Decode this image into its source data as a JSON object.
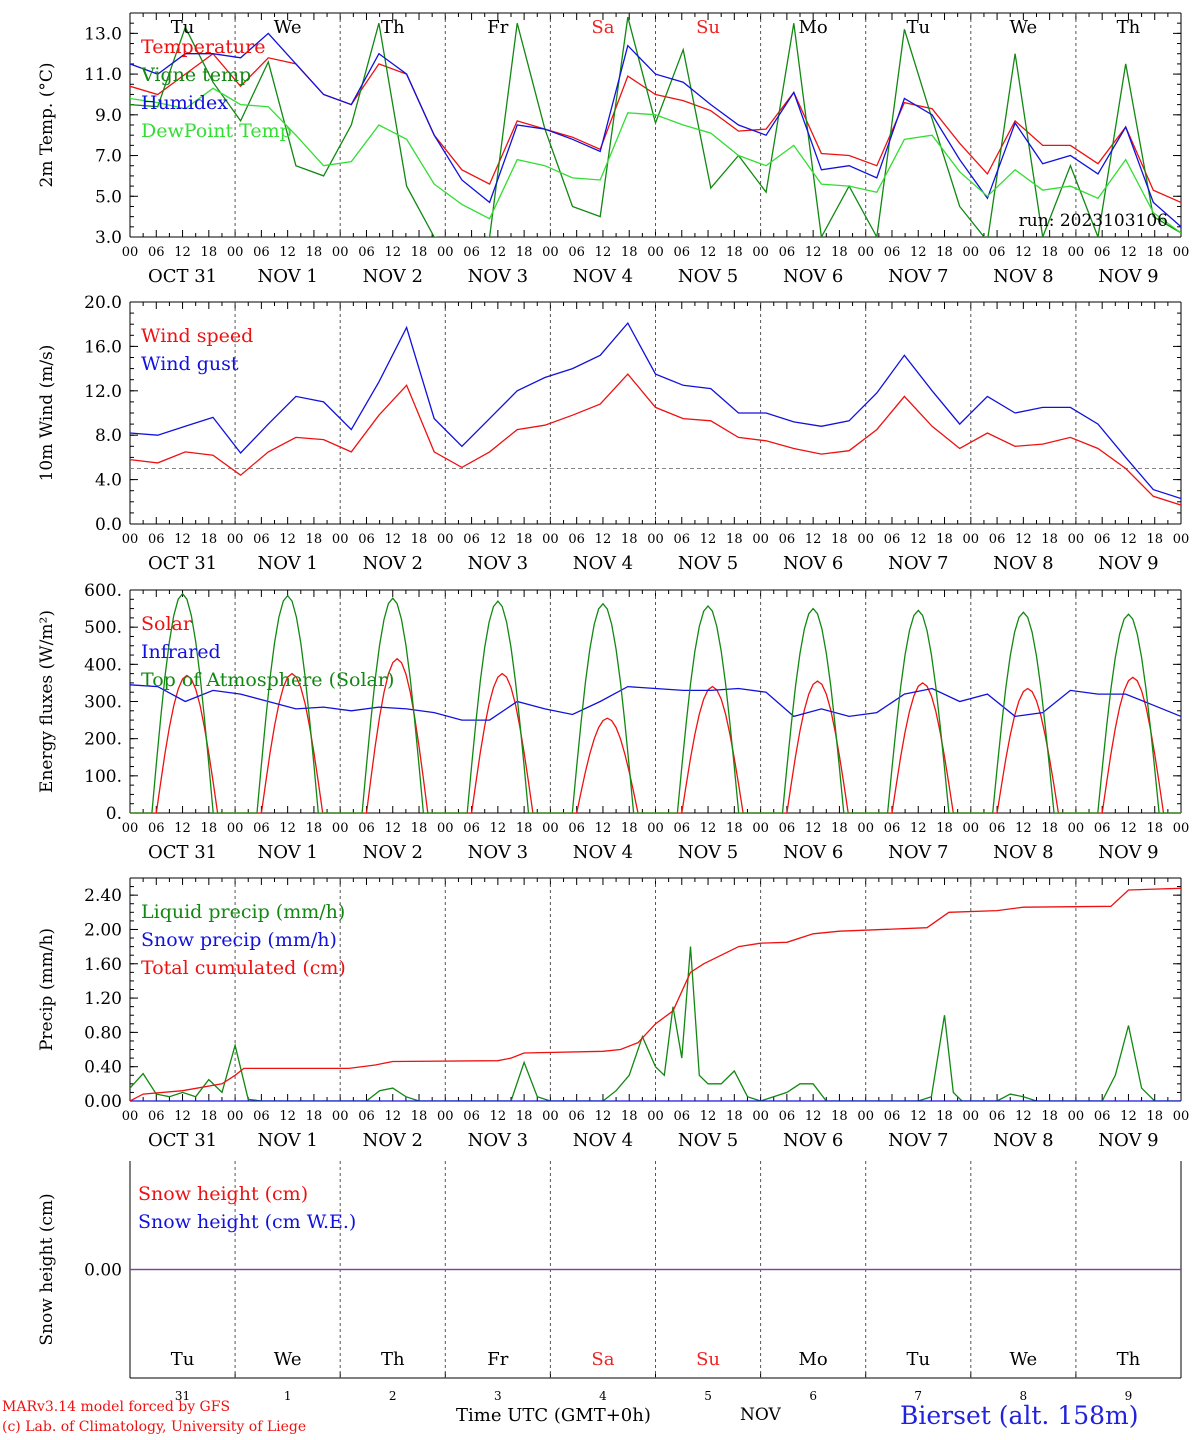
{
  "run_label": "run: 2023103106",
  "colors": {
    "red": "#ee1111",
    "green": "#118811",
    "blue": "#1111dd",
    "light_green": "#33dd33",
    "purple": "#7744aa",
    "day_red": "#ee2222",
    "axis": "#000000",
    "grid": "#555555"
  },
  "days": [
    {
      "dow": "Tu",
      "date_label": "OCT 31",
      "num": "31",
      "weekend": false
    },
    {
      "dow": "We",
      "date_label": "NOV 1",
      "num": "1",
      "weekend": false
    },
    {
      "dow": "Th",
      "date_label": "NOV 2",
      "num": "2",
      "weekend": false
    },
    {
      "dow": "Fr",
      "date_label": "NOV 3",
      "num": "3",
      "weekend": false
    },
    {
      "dow": "Sa",
      "date_label": "NOV 4",
      "num": "4",
      "weekend": true
    },
    {
      "dow": "Su",
      "date_label": "NOV 5",
      "num": "5",
      "weekend": true
    },
    {
      "dow": "Mo",
      "date_label": "NOV 6",
      "num": "6",
      "weekend": false
    },
    {
      "dow": "Tu",
      "date_label": "NOV 7",
      "num": "7",
      "weekend": false
    },
    {
      "dow": "We",
      "date_label": "NOV 8",
      "num": "8",
      "weekend": false
    },
    {
      "dow": "Th",
      "date_label": "NOV 9",
      "num": "9",
      "weekend": false
    }
  ],
  "hour_ticks": [
    "00",
    "06",
    "12",
    "18"
  ],
  "footer": {
    "model": "MARv3.14 model forced by GFS",
    "copyright": "(c) Lab. of Climatology, University of Liege",
    "time_label": "Time UTC (GMT+0h)",
    "month": "NOV",
    "station": "Bierset (alt. 158m)"
  },
  "chart_data": [
    {
      "id": "temperature",
      "type": "line",
      "ylabel": "2m Temp. (°C)",
      "ylim": [
        3,
        14
      ],
      "yticks": [
        "3.0",
        "5.0",
        "7.0",
        "9.0",
        "11.0",
        "13.0"
      ],
      "grid": "vertical-dashed-day-separators",
      "legend_position": "top-left",
      "x_unit": "hours since 2023-10-31 00 UTC, 6-hourly, 0..240",
      "series": [
        {
          "name": "Temperature",
          "color": "#ee1111",
          "values": [
            10.4,
            10.0,
            11.0,
            12.0,
            10.4,
            11.8,
            11.5,
            10.0,
            9.5,
            11.5,
            11.0,
            8.0,
            6.3,
            5.6,
            8.7,
            8.3,
            7.9,
            7.3,
            10.9,
            10.0,
            9.7,
            9.2,
            8.2,
            8.3,
            10.1,
            7.1,
            7.0,
            6.5,
            9.6,
            9.3,
            7.6,
            6.1,
            8.7,
            7.5,
            7.5,
            6.6,
            8.4,
            5.3,
            4.7
          ]
        },
        {
          "name": "Vigne temp",
          "color": "#118811",
          "values": [
            9.5,
            9.4,
            13.3,
            10.6,
            8.7,
            11.6,
            6.5,
            6.0,
            8.5,
            13.5,
            5.5,
            3.0,
            2.8,
            3.0,
            13.5,
            8.3,
            4.5,
            4.0,
            13.8,
            8.6,
            12.2,
            5.4,
            7.0,
            5.2,
            13.5,
            3.0,
            5.5,
            3.0,
            13.2,
            8.8,
            4.5,
            2.8,
            12.0,
            3.0,
            6.5,
            3.0,
            11.5,
            4.0,
            3.2
          ]
        },
        {
          "name": "Humidex",
          "color": "#1111dd",
          "values": [
            11.5,
            11.0,
            12.0,
            12.0,
            11.8,
            13.0,
            11.5,
            10.0,
            9.5,
            12.0,
            11.0,
            8.0,
            5.8,
            4.7,
            8.5,
            8.3,
            7.8,
            7.2,
            12.4,
            11.0,
            10.6,
            9.5,
            8.5,
            8.0,
            10.1,
            6.3,
            6.5,
            5.9,
            9.8,
            9.0,
            6.8,
            4.9,
            8.6,
            6.6,
            7.0,
            6.1,
            8.4,
            4.7,
            3.5
          ]
        },
        {
          "name": "DewPoint Temp",
          "color": "#33dd33",
          "values": [
            9.8,
            9.6,
            9.3,
            10.3,
            9.5,
            9.4,
            8.0,
            6.5,
            6.7,
            8.5,
            7.8,
            5.6,
            4.6,
            3.9,
            6.8,
            6.5,
            5.9,
            5.8,
            9.1,
            9.0,
            8.5,
            8.1,
            7.0,
            6.5,
            7.5,
            5.6,
            5.5,
            5.2,
            7.8,
            8.0,
            6.2,
            5.0,
            6.3,
            5.3,
            5.5,
            4.9,
            6.8,
            4.2,
            3.2
          ]
        }
      ]
    },
    {
      "id": "wind",
      "type": "line",
      "ylabel": "10m Wind (m/s)",
      "ylim": [
        0,
        20
      ],
      "yticks": [
        "0.0",
        "4.0",
        "8.0",
        "12.0",
        "16.0",
        "20.0"
      ],
      "reference_line": 5.0,
      "legend_position": "top-left",
      "series": [
        {
          "name": "Wind speed",
          "color": "#ee1111",
          "values": [
            5.8,
            5.5,
            6.5,
            6.2,
            4.4,
            6.5,
            7.8,
            7.6,
            6.5,
            9.8,
            12.5,
            6.5,
            5.1,
            6.5,
            8.5,
            8.9,
            9.8,
            10.8,
            13.5,
            10.5,
            9.5,
            9.3,
            7.8,
            7.5,
            6.8,
            6.3,
            6.6,
            8.5,
            11.5,
            8.8,
            6.8,
            8.2,
            7.0,
            7.2,
            7.8,
            6.8,
            5.0,
            2.5,
            1.7
          ]
        },
        {
          "name": "Wind gust",
          "color": "#1111dd",
          "values": [
            8.2,
            8.0,
            8.8,
            9.6,
            6.4,
            9.0,
            11.5,
            11.0,
            8.5,
            12.8,
            17.7,
            9.5,
            7.0,
            9.5,
            12.0,
            13.2,
            14.0,
            15.2,
            18.1,
            13.5,
            12.5,
            12.2,
            10.0,
            10.0,
            9.2,
            8.8,
            9.3,
            11.8,
            15.2,
            12.0,
            9.0,
            11.5,
            10.0,
            10.5,
            10.5,
            9.0,
            6.0,
            3.1,
            2.3
          ]
        }
      ]
    },
    {
      "id": "energy",
      "type": "line",
      "ylabel": "Energy fluxes (W/m²)",
      "ylim": [
        0,
        600
      ],
      "yticks": [
        "0.",
        "100.",
        "200.",
        "300.",
        "400.",
        "500.",
        "600."
      ],
      "legend_position": "top-left",
      "series": [
        {
          "name": "Solar",
          "color": "#ee1111",
          "peaks": [
            [
              13,
              370
            ],
            [
              37,
              375
            ],
            [
              61,
              415
            ],
            [
              85,
              375
            ],
            [
              109,
              255
            ],
            [
              133,
              340
            ],
            [
              157,
              355
            ],
            [
              181,
              350
            ],
            [
              205,
              335
            ],
            [
              229,
              365
            ]
          ]
        },
        {
          "name": "Infrared",
          "color": "#1111dd",
          "values": [
            345,
            340,
            300,
            330,
            320,
            300,
            280,
            285,
            275,
            285,
            280,
            270,
            250,
            250,
            300,
            280,
            265,
            300,
            340,
            335,
            330,
            330,
            335,
            325,
            260,
            280,
            260,
            270,
            320,
            335,
            300,
            320,
            260,
            270,
            330,
            320,
            320,
            290,
            260
          ]
        },
        {
          "name": "Top of Atmosphere (Solar)",
          "color": "#118811",
          "peaks": [
            [
              12,
              590
            ],
            [
              36,
              585
            ],
            [
              60,
              578
            ],
            [
              84,
              570
            ],
            [
              108,
              563
            ],
            [
              132,
              557
            ],
            [
              156,
              550
            ],
            [
              180,
              545
            ],
            [
              204,
              540
            ],
            [
              228,
              535
            ]
          ]
        }
      ]
    },
    {
      "id": "precip",
      "type": "line",
      "ylabel": "Precip (mm/h)",
      "ylim": [
        0,
        2.6
      ],
      "yticks": [
        "0.00",
        "0.40",
        "0.80",
        "1.20",
        "1.60",
        "2.00",
        "2.40"
      ],
      "legend_position": "top-left",
      "series": [
        {
          "name": "Liquid precip (mm/h)",
          "color": "#118811",
          "points": [
            [
              0,
              0.15
            ],
            [
              3,
              0.32
            ],
            [
              6,
              0.08
            ],
            [
              9,
              0.05
            ],
            [
              12,
              0.1
            ],
            [
              15,
              0.05
            ],
            [
              18,
              0.25
            ],
            [
              21,
              0.1
            ],
            [
              24,
              0.65
            ],
            [
              27,
              0.02
            ],
            [
              30,
              0.0
            ],
            [
              54,
              0.0
            ],
            [
              57,
              0.12
            ],
            [
              60,
              0.15
            ],
            [
              63,
              0.05
            ],
            [
              66,
              0.0
            ],
            [
              87,
              0.0
            ],
            [
              90,
              0.45
            ],
            [
              93,
              0.05
            ],
            [
              96,
              0.0
            ],
            [
              108,
              0.0
            ],
            [
              111,
              0.12
            ],
            [
              114,
              0.3
            ],
            [
              117,
              0.75
            ],
            [
              120,
              0.4
            ],
            [
              122,
              0.3
            ],
            [
              124,
              1.1
            ],
            [
              126,
              0.5
            ],
            [
              128,
              1.8
            ],
            [
              130,
              0.3
            ],
            [
              132,
              0.2
            ],
            [
              135,
              0.2
            ],
            [
              138,
              0.35
            ],
            [
              141,
              0.05
            ],
            [
              144,
              0.0
            ],
            [
              150,
              0.1
            ],
            [
              153,
              0.2
            ],
            [
              156,
              0.2
            ],
            [
              159,
              0.0
            ],
            [
              180,
              0.0
            ],
            [
              183,
              0.05
            ],
            [
              186,
              1.0
            ],
            [
              188,
              0.1
            ],
            [
              190,
              0.0
            ],
            [
              198,
              0.0
            ],
            [
              201,
              0.08
            ],
            [
              204,
              0.05
            ],
            [
              207,
              0.0
            ],
            [
              222,
              0.0
            ],
            [
              225,
              0.3
            ],
            [
              228,
              0.88
            ],
            [
              231,
              0.15
            ],
            [
              234,
              0.0
            ],
            [
              240,
              0.0
            ]
          ]
        },
        {
          "name": "Snow precip (mm/h)",
          "color": "#1111dd",
          "values": [
            0
          ]
        },
        {
          "name": "Total cumulated (cm)",
          "color": "#ee1111",
          "points": [
            [
              0,
              0.0
            ],
            [
              3,
              0.08
            ],
            [
              12,
              0.12
            ],
            [
              21,
              0.2
            ],
            [
              24,
              0.3
            ],
            [
              26,
              0.38
            ],
            [
              50,
              0.38
            ],
            [
              56,
              0.42
            ],
            [
              60,
              0.46
            ],
            [
              84,
              0.47
            ],
            [
              87,
              0.5
            ],
            [
              90,
              0.56
            ],
            [
              108,
              0.58
            ],
            [
              112,
              0.6
            ],
            [
              116,
              0.68
            ],
            [
              120,
              0.9
            ],
            [
              124,
              1.05
            ],
            [
              128,
              1.5
            ],
            [
              131,
              1.6
            ],
            [
              135,
              1.7
            ],
            [
              139,
              1.8
            ],
            [
              144,
              1.84
            ],
            [
              150,
              1.85
            ],
            [
              156,
              1.95
            ],
            [
              162,
              1.98
            ],
            [
              182,
              2.02
            ],
            [
              187,
              2.2
            ],
            [
              198,
              2.22
            ],
            [
              204,
              2.26
            ],
            [
              224,
              2.27
            ],
            [
              228,
              2.46
            ],
            [
              240,
              2.48
            ]
          ]
        }
      ]
    },
    {
      "id": "snow",
      "type": "line",
      "ylabel": "Snow height (cm)",
      "ylim": [
        -1,
        1
      ],
      "yticks": [
        "0.00"
      ],
      "legend_position": "top-left",
      "series": [
        {
          "name": "Snow height (cm)",
          "color": "#ee1111",
          "values": [
            0,
            0
          ]
        },
        {
          "name": "Snow height (cm W.E.)",
          "color": "#1111dd",
          "values": [
            0,
            0
          ]
        }
      ]
    }
  ]
}
